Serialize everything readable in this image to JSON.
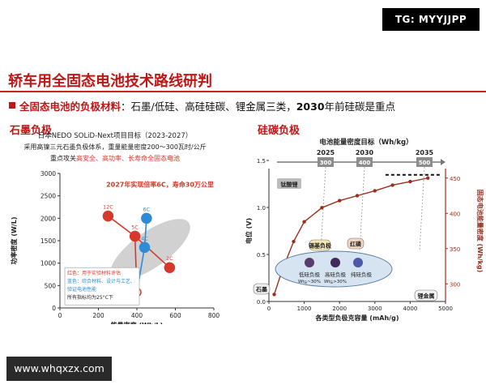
{
  "watermark_top": "TG: MYYJJPP",
  "watermark_bottom": "www.whqxzx.com",
  "slide": {
    "title": "轿车用全固态电池技术路线研判",
    "subtitle_bold": "全固态电池的负极材料",
    "subtitle_rest": "：石墨/低硅、高硅硅碳、锂金属三类，",
    "subtitle_year": "2030",
    "subtitle_end": "年前硅碳是重点"
  },
  "left_section": "石墨负极",
  "right_section": "硅碳负极",
  "colors": {
    "red": "#d7382c",
    "blue": "#2e8bd6",
    "dark_red": "#9b2f1d",
    "grey_band": "#c9c9c9"
  },
  "chart_data": [
    {
      "type": "scatter",
      "title": "日本NEDO SOLiD-Next项目目标（2023-2027）",
      "notes": [
        "采用高镍三元石墨负极体系，重量能量密度200～300瓦时/公斤",
        "重点攻关高安全、高功率、长寿命全固态电池"
      ],
      "callout": "2027年实现倍率6C，寿命30万公里",
      "xlabel": "能量密度 (Wh/L)",
      "ylabel": "功率密度 (W/L)",
      "xlim": [
        0,
        800
      ],
      "ylim": [
        0,
        3000
      ],
      "xticks": [
        0,
        200,
        400,
        600,
        800
      ],
      "yticks": [
        0,
        500,
        1000,
        1500,
        2000,
        2500,
        3000
      ],
      "points": [
        {
          "label": "12C",
          "x": 250,
          "y": 2050,
          "color": "red",
          "filled": true
        },
        {
          "label": "6C",
          "x": 450,
          "y": 2000,
          "color": "blue",
          "filled": true
        },
        {
          "label": "5C",
          "x": 390,
          "y": 1600,
          "color": "red",
          "filled": true
        },
        {
          "label": "4C",
          "x": 440,
          "y": 1350,
          "color": "blue",
          "filled": true
        },
        {
          "label": "2C",
          "x": 570,
          "y": 900,
          "color": "red",
          "filled": true
        },
        {
          "label": "",
          "x": 400,
          "y": 350,
          "color": "red",
          "filled": false
        }
      ],
      "legend_box": {
        "lines": [
          "红色：用于实验材料评估",
          "蓝色：综合材料、设计与工艺、",
          "       验证电池性能",
          "所有指标均为25°C下"
        ]
      }
    },
    {
      "type": "line",
      "title": "电池能量密度目标（Wh/kg）",
      "xlabel": "各类型负极克容量 (mAh/g)",
      "ylabel_left": "电位 (V)",
      "ylabel_right": "固态电池能量密度 (Wh/kg)",
      "xlim": [
        0,
        5000
      ],
      "ylim_left": [
        0,
        1.5
      ],
      "ylim_right": [
        275,
        475
      ],
      "xticks": [
        0,
        1000,
        2000,
        3000,
        4000,
        5000
      ],
      "yticks_left": [
        0.0,
        0.5,
        1.0,
        1.5
      ],
      "yticks_right": [
        300,
        350,
        400,
        450
      ],
      "timeline": [
        {
          "year": "2025",
          "target": "300"
        },
        {
          "year": "2030",
          "target": "400"
        },
        {
          "year": "2035",
          "target": "500"
        }
      ],
      "curve": [
        {
          "x": 150,
          "y": 285
        },
        {
          "x": 380,
          "y": 320
        },
        {
          "x": 700,
          "y": 360
        },
        {
          "x": 1000,
          "y": 388
        },
        {
          "x": 1500,
          "y": 408
        },
        {
          "x": 2000,
          "y": 418
        },
        {
          "x": 2500,
          "y": 425
        },
        {
          "x": 3000,
          "y": 432
        },
        {
          "x": 3500,
          "y": 440
        },
        {
          "x": 4000,
          "y": 445
        },
        {
          "x": 4500,
          "y": 450
        }
      ],
      "target_dashed_y": 450,
      "labels": {
        "ti_li": "钛酸锂",
        "graphite": "石墨",
        "tin": "锡基负极",
        "red_p": "红磷",
        "li_metal": "锂金属",
        "low_si": "低硅负极",
        "low_si_sub": "Wt",
        "low_si_pct": "~30%",
        "high_si": "高硅负极",
        "high_si_sub": "Wt",
        "high_si_pct": ">30%",
        "pure_si": "纯硅负极",
        "si_subscript": "Si"
      }
    }
  ]
}
